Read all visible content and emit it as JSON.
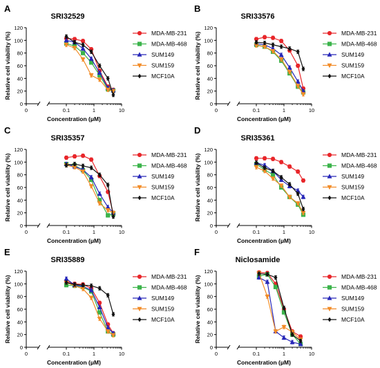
{
  "panels": [
    {
      "letter": "A",
      "chart_data": {
        "type": "line",
        "title": "SRI32529",
        "xlabel": "Concentration (μM)",
        "ylabel": "Relative cell viability (%)",
        "x_scale": "log",
        "xlim": [
          0,
          10
        ],
        "ylim": [
          0,
          120
        ],
        "x_ticks": [
          {
            "value": 0.1,
            "label": "0.1"
          },
          {
            "value": 1,
            "label": "1"
          },
          {
            "value": 10,
            "label": "10"
          }
        ],
        "x_zero_label": "0",
        "y_ticks": [
          0,
          20,
          40,
          60,
          80,
          100,
          120
        ],
        "x": [
          0.1,
          0.2,
          0.4,
          0.8,
          1.6,
          3.2,
          5
        ],
        "legend_placement": "right",
        "series": [
          {
            "name": "MDA-MB-231",
            "color": "#e8262a",
            "marker": "circle",
            "values": [
              103,
              102,
              99,
              86,
              52,
              27,
              22
            ]
          },
          {
            "name": "MDA-MB-468",
            "color": "#3bb34a",
            "marker": "square",
            "values": [
              95,
              91,
              80,
              65,
              45,
              23,
              21
            ]
          },
          {
            "name": "SUM149",
            "color": "#2626b8",
            "marker": "triangle",
            "values": [
              100,
              97,
              87,
              71,
              49,
              25,
              21
            ]
          },
          {
            "name": "SUM159",
            "color": "#f28c28",
            "marker": "triangle-down",
            "values": [
              93,
              88,
              70,
              45,
              38,
              22,
              20
            ]
          },
          {
            "name": "MCF10A",
            "color": "#111111",
            "marker": "diamond",
            "values": [
              106,
              97,
              93,
              82,
              60,
              40,
              14
            ]
          }
        ]
      }
    },
    {
      "letter": "B",
      "chart_data": {
        "type": "line",
        "title": "SRI33576",
        "xlabel": "Concentration (μM)",
        "ylabel": "Relative cell viability (%)",
        "x_scale": "log",
        "xlim": [
          0,
          10
        ],
        "ylim": [
          0,
          120
        ],
        "x_ticks": [
          {
            "value": 0.1,
            "label": "0.1"
          },
          {
            "value": 1,
            "label": "1"
          },
          {
            "value": 10,
            "label": "10"
          }
        ],
        "x_zero_label": "0",
        "y_ticks": [
          0,
          20,
          40,
          60,
          80,
          100,
          120
        ],
        "x": [
          0.1,
          0.2,
          0.4,
          0.8,
          1.6,
          3.2,
          5
        ],
        "legend_placement": "right",
        "series": [
          {
            "name": "MDA-MB-231",
            "color": "#e8262a",
            "marker": "circle",
            "values": [
              102,
              105,
              104,
              99,
              84,
              60,
              24
            ]
          },
          {
            "name": "MDA-MB-468",
            "color": "#3bb34a",
            "marker": "square",
            "values": [
              93,
              90,
              82,
              68,
              48,
              27,
              18
            ]
          },
          {
            "name": "SUM149",
            "color": "#2626b8",
            "marker": "triangle",
            "values": [
              95,
              93,
              87,
              77,
              57,
              35,
              20
            ]
          },
          {
            "name": "SUM159",
            "color": "#f28c28",
            "marker": "triangle-down",
            "values": [
              92,
              90,
              83,
              70,
              50,
              28,
              15
            ]
          },
          {
            "name": "MCF10A",
            "color": "#111111",
            "marker": "diamond",
            "values": [
              97,
              96,
              93,
              90,
              87,
              82,
              55
            ]
          }
        ]
      }
    },
    {
      "letter": "C",
      "chart_data": {
        "type": "line",
        "title": "SRI35357",
        "xlabel": "Concentration (μM)",
        "ylabel": "Relative cell viability (%)",
        "x_scale": "log",
        "xlim": [
          0,
          10
        ],
        "ylim": [
          0,
          120
        ],
        "x_ticks": [
          {
            "value": 0.1,
            "label": "0.1"
          },
          {
            "value": 1,
            "label": "1"
          },
          {
            "value": 10,
            "label": "10"
          }
        ],
        "x_zero_label": "0",
        "y_ticks": [
          0,
          20,
          40,
          60,
          80,
          100,
          120
        ],
        "x": [
          0.1,
          0.2,
          0.4,
          0.8,
          1.6,
          3.2,
          5
        ],
        "legend_placement": "right",
        "series": [
          {
            "name": "MDA-MB-231",
            "color": "#e8262a",
            "marker": "circle",
            "values": [
              107,
              109,
              110,
              104,
              78,
              53,
              19
            ]
          },
          {
            "name": "MDA-MB-468",
            "color": "#3bb34a",
            "marker": "square",
            "values": [
              97,
              95,
              87,
              72,
              40,
              16,
              18
            ]
          },
          {
            "name": "SUM149",
            "color": "#2626b8",
            "marker": "triangle",
            "values": [
              97,
              93,
              88,
              76,
              50,
              29,
              20
            ]
          },
          {
            "name": "SUM159",
            "color": "#f28c28",
            "marker": "triangle-down",
            "values": [
              95,
              92,
              85,
              62,
              35,
              24,
              20
            ]
          },
          {
            "name": "MCF10A",
            "color": "#111111",
            "marker": "diamond",
            "values": [
              95,
              97,
              94,
              91,
              80,
              64,
              14
            ]
          }
        ]
      }
    },
    {
      "letter": "D",
      "chart_data": {
        "type": "line",
        "title": "SRI35361",
        "xlabel": "Concentration (μM)",
        "ylabel": "Relative cell viability (%)",
        "x_scale": "log",
        "xlim": [
          0,
          10
        ],
        "ylim": [
          0,
          120
        ],
        "x_ticks": [
          {
            "value": 0.1,
            "label": "0.1"
          },
          {
            "value": 1,
            "label": "1"
          },
          {
            "value": 10,
            "label": "10"
          }
        ],
        "x_zero_label": "0",
        "y_ticks": [
          0,
          20,
          40,
          60,
          80,
          100,
          120
        ],
        "x": [
          0.1,
          0.2,
          0.4,
          0.8,
          1.6,
          3.2,
          5
        ],
        "legend_placement": "right",
        "series": [
          {
            "name": "MDA-MB-231",
            "color": "#e8262a",
            "marker": "circle",
            "values": [
              106,
              106,
              105,
              100,
              93,
              85,
              71
            ]
          },
          {
            "name": "MDA-MB-468",
            "color": "#3bb34a",
            "marker": "square",
            "values": [
              97,
              88,
              80,
              60,
              45,
              33,
              17
            ]
          },
          {
            "name": "SUM149",
            "color": "#2626b8",
            "marker": "triangle",
            "values": [
              99,
              95,
              86,
              72,
              62,
              55,
              45
            ]
          },
          {
            "name": "SUM159",
            "color": "#f28c28",
            "marker": "triangle-down",
            "values": [
              92,
              86,
              74,
              63,
              45,
              35,
              20
            ]
          },
          {
            "name": "MCF10A",
            "color": "#111111",
            "marker": "diamond",
            "values": [
              99,
              91,
              86,
              76,
              65,
              50,
              26
            ]
          }
        ]
      }
    },
    {
      "letter": "E",
      "chart_data": {
        "type": "line",
        "title": "SRI35889",
        "xlabel": "Concentration (μM)",
        "ylabel": "Relative cell viability (%)",
        "x_scale": "log",
        "xlim": [
          0,
          10
        ],
        "ylim": [
          0,
          120
        ],
        "x_ticks": [
          {
            "value": 0.1,
            "label": "0.1"
          },
          {
            "value": 1,
            "label": "1"
          },
          {
            "value": 10,
            "label": "10"
          }
        ],
        "x_zero_label": "0",
        "y_ticks": [
          0,
          20,
          40,
          60,
          80,
          100,
          120
        ],
        "x": [
          0.1,
          0.2,
          0.4,
          0.8,
          1.6,
          3.2,
          5
        ],
        "legend_placement": "right",
        "series": [
          {
            "name": "MDA-MB-231",
            "color": "#e8262a",
            "marker": "circle",
            "values": [
              104,
              100,
              99,
              93,
              70,
              36,
              22
            ]
          },
          {
            "name": "MDA-MB-468",
            "color": "#3bb34a",
            "marker": "square",
            "values": [
              98,
              97,
              95,
              88,
              55,
              25,
              20
            ]
          },
          {
            "name": "SUM149",
            "color": "#2626b8",
            "marker": "triangle",
            "values": [
              108,
              98,
              96,
              90,
              63,
              31,
              22
            ]
          },
          {
            "name": "SUM159",
            "color": "#f28c28",
            "marker": "triangle-down",
            "values": [
              102,
              97,
              92,
              78,
              45,
              25,
              19
            ]
          },
          {
            "name": "MCF10A",
            "color": "#111111",
            "marker": "diamond",
            "values": [
              102,
              99,
              98,
              97,
              93,
              82,
              52
            ]
          }
        ]
      }
    },
    {
      "letter": "F",
      "chart_data": {
        "type": "line",
        "title": "Niclosamide",
        "xlabel": "Concentration (μM)",
        "ylabel": "Relative cell viability (%)",
        "x_scale": "log",
        "xlim": [
          0,
          10
        ],
        "ylim": [
          0,
          120
        ],
        "x_ticks": [
          {
            "value": 0.1,
            "label": "0.1"
          },
          {
            "value": 1,
            "label": "1"
          },
          {
            "value": 10,
            "label": "10"
          }
        ],
        "x_zero_label": "0",
        "y_ticks": [
          0,
          20,
          40,
          60,
          80,
          100,
          120
        ],
        "x": [
          0.125,
          0.25,
          0.5,
          1,
          2,
          4
        ],
        "legend_placement": "right",
        "series": [
          {
            "name": "MDA-MB-231",
            "color": "#e8262a",
            "marker": "circle",
            "values": [
              118,
              117,
              100,
              60,
              25,
              17
            ]
          },
          {
            "name": "MDA-MB-468",
            "color": "#3bb34a",
            "marker": "square",
            "values": [
              112,
              115,
              95,
              55,
              20,
              5
            ]
          },
          {
            "name": "SUM149",
            "color": "#2626b8",
            "marker": "triangle",
            "values": [
              110,
              103,
              25,
              15,
              8,
              5
            ]
          },
          {
            "name": "SUM159",
            "color": "#f28c28",
            "marker": "triangle-down",
            "values": [
              117,
              80,
              25,
              32,
              24,
              12
            ]
          },
          {
            "name": "MCF10A",
            "color": "#111111",
            "marker": "diamond",
            "values": [
              116,
              115,
              110,
              62,
              20,
              10
            ]
          }
        ]
      }
    }
  ]
}
